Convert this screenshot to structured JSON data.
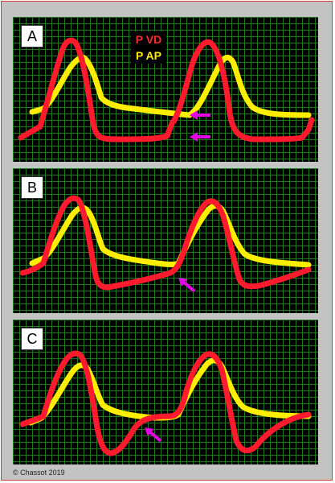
{
  "legend": {
    "pvd": "P VD",
    "pap": "P AP"
  },
  "panels": [
    {
      "label": "A"
    },
    {
      "label": "B"
    },
    {
      "label": "C"
    }
  ],
  "colors": {
    "pvd_line": "#ff1a2e",
    "pap_line": "#ffee00",
    "arrow": "#e600e6",
    "grid": "#1e7a1e"
  },
  "copyright": "© Chassot 2019"
}
